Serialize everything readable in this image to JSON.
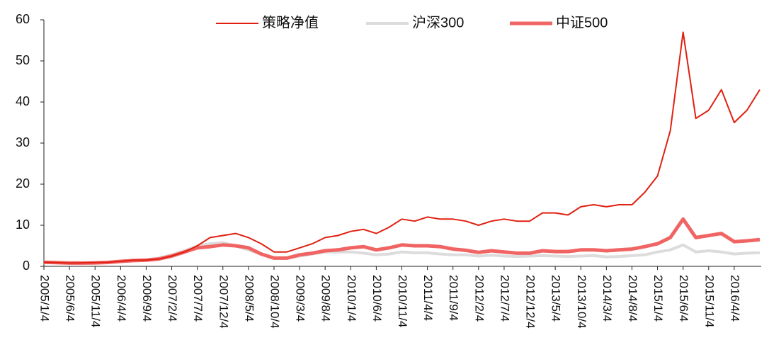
{
  "chart_data": {
    "type": "line",
    "categories": [
      "2005/1/4",
      null,
      "2005/6/4",
      null,
      "2005/11/4",
      null,
      "2006/4/4",
      null,
      "2006/9/4",
      null,
      "2007/2/4",
      null,
      "2007/7/4",
      null,
      "2007/12/4",
      null,
      "2008/5/4",
      null,
      "2008/10/4",
      null,
      "2009/3/4",
      null,
      "2009/8/4",
      null,
      "2010/1/4",
      null,
      "2010/6/4",
      null,
      "2010/11/4",
      null,
      "2011/4/4",
      null,
      "2011/9/4",
      null,
      "2012/2/4",
      null,
      "2012/7/4",
      null,
      "2012/12/4",
      null,
      "2013/5/4",
      null,
      "2013/10/4",
      null,
      "2014/3/4",
      null,
      "2014/8/4",
      null,
      "2015/1/4",
      null,
      "2015/6/4",
      null,
      "2015/11/4",
      null,
      "2016/4/4",
      null,
      null
    ],
    "series": [
      {
        "name": "策略净值",
        "color": "#e02010",
        "width": 2,
        "values": [
          1.0,
          0.9,
          0.8,
          0.85,
          0.9,
          1.0,
          1.2,
          1.5,
          1.5,
          1.8,
          2.5,
          3.5,
          5,
          7,
          7.5,
          8,
          7,
          5.5,
          3.5,
          3.5,
          4.5,
          5.5,
          7,
          7.5,
          8.5,
          9,
          8,
          9.5,
          11.5,
          11,
          12,
          11.5,
          11.5,
          11,
          10,
          11,
          11.5,
          11,
          11,
          13,
          13,
          12.5,
          14.5,
          15,
          14.5,
          15,
          15,
          18,
          22,
          33,
          57,
          36,
          38,
          43,
          35,
          38,
          43
        ]
      },
      {
        "name": "沪深300",
        "color": "#dcdcdc",
        "width": 4,
        "values": [
          1.0,
          0.9,
          0.8,
          0.85,
          0.9,
          1.0,
          1.3,
          1.5,
          1.6,
          2.0,
          2.8,
          3.8,
          5,
          5.5,
          5.8,
          5,
          4,
          3,
          2,
          2,
          2.5,
          3,
          3.5,
          3.5,
          3.5,
          3.2,
          2.8,
          3,
          3.5,
          3.3,
          3.3,
          3,
          2.8,
          2.8,
          2.5,
          2.7,
          2.5,
          2.4,
          2.5,
          2.6,
          2.5,
          2.4,
          2.5,
          2.6,
          2.3,
          2.4,
          2.6,
          2.8,
          3.5,
          4,
          5.2,
          3.5,
          3.8,
          3.5,
          3.0,
          3.2,
          3.3
        ]
      },
      {
        "name": "中证500",
        "color": "#f06464",
        "width": 5,
        "values": [
          1.0,
          0.9,
          0.8,
          0.8,
          0.85,
          0.95,
          1.2,
          1.4,
          1.5,
          1.8,
          2.5,
          3.5,
          4.5,
          4.8,
          5.2,
          5,
          4.5,
          3,
          2,
          2,
          2.8,
          3.2,
          3.8,
          4,
          4.5,
          4.8,
          4,
          4.5,
          5.2,
          5,
          5,
          4.8,
          4.2,
          3.9,
          3.4,
          3.8,
          3.5,
          3.2,
          3.2,
          3.8,
          3.6,
          3.6,
          4,
          4,
          3.8,
          4,
          4.2,
          4.8,
          5.5,
          7,
          11.5,
          7,
          7.5,
          8,
          6,
          6.2,
          6.5
        ]
      }
    ],
    "ylim": [
      0,
      60
    ],
    "yticks": [
      0,
      10,
      20,
      30,
      40,
      50,
      60
    ],
    "legend": "top"
  }
}
